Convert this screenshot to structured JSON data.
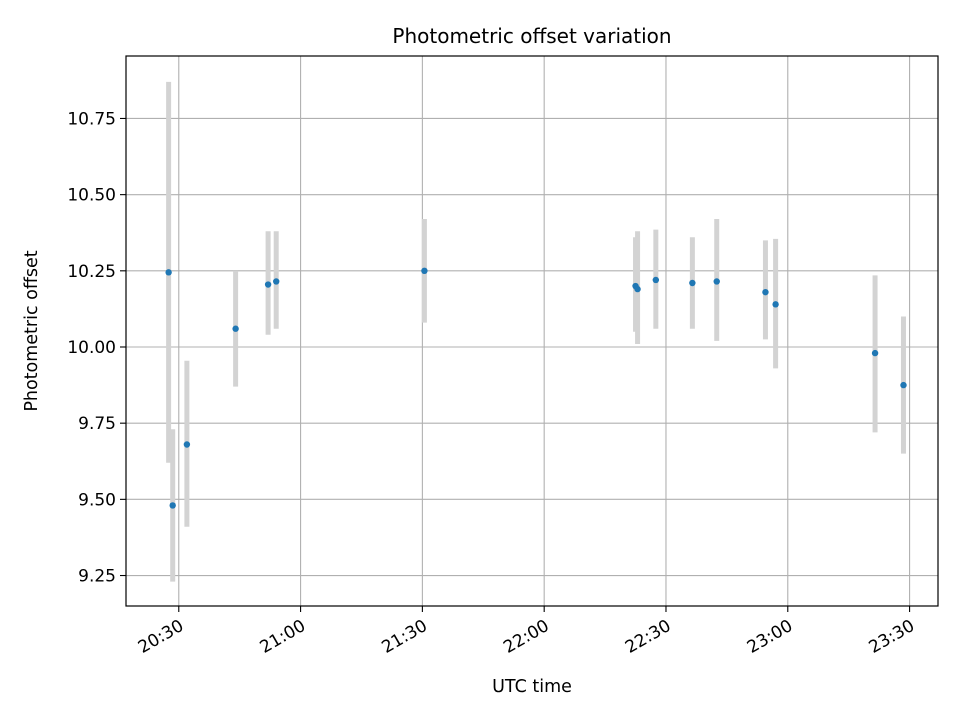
{
  "chart_data": {
    "type": "scatter",
    "title": "Photometric offset variation",
    "xlabel": "UTC time",
    "ylabel": "Photometric offset",
    "grid": true,
    "xlim": [
      "20:17",
      "23:37"
    ],
    "ylim": [
      9.15,
      10.955
    ],
    "x_ticks": [
      "20:30",
      "21:00",
      "21:30",
      "22:00",
      "22:30",
      "23:00",
      "23:30"
    ],
    "y_ticks": [
      "9.25",
      "9.50",
      "9.75",
      "10.00",
      "10.25",
      "10.50",
      "10.75"
    ],
    "colors": {
      "point": "#1f77b4",
      "errorbar": "#d3d3d3",
      "grid": "#b0b0b0"
    },
    "points": [
      {
        "x": "20:27:30",
        "y": 10.245,
        "ymin": 9.62,
        "ymax": 10.87
      },
      {
        "x": "20:28:30",
        "y": 9.48,
        "ymin": 9.23,
        "ymax": 9.73
      },
      {
        "x": "20:32:00",
        "y": 9.68,
        "ymin": 9.41,
        "ymax": 9.955
      },
      {
        "x": "20:44:00",
        "y": 10.06,
        "ymin": 9.87,
        "ymax": 10.25
      },
      {
        "x": "20:52:00",
        "y": 10.205,
        "ymin": 10.04,
        "ymax": 10.38
      },
      {
        "x": "20:54:00",
        "y": 10.215,
        "ymin": 10.06,
        "ymax": 10.38
      },
      {
        "x": "21:30:30",
        "y": 10.25,
        "ymin": 10.08,
        "ymax": 10.42
      },
      {
        "x": "22:22:30",
        "y": 10.2,
        "ymin": 10.05,
        "ymax": 10.36
      },
      {
        "x": "22:23:00",
        "y": 10.19,
        "ymin": 10.01,
        "ymax": 10.38
      },
      {
        "x": "22:27:30",
        "y": 10.22,
        "ymin": 10.06,
        "ymax": 10.385
      },
      {
        "x": "22:36:30",
        "y": 10.21,
        "ymin": 10.06,
        "ymax": 10.36
      },
      {
        "x": "22:42:30",
        "y": 10.215,
        "ymin": 10.02,
        "ymax": 10.42
      },
      {
        "x": "22:54:30",
        "y": 10.18,
        "ymin": 10.025,
        "ymax": 10.35
      },
      {
        "x": "22:57:00",
        "y": 10.14,
        "ymin": 9.93,
        "ymax": 10.355
      },
      {
        "x": "23:21:30",
        "y": 9.98,
        "ymin": 9.72,
        "ymax": 10.235
      },
      {
        "x": "23:28:30",
        "y": 9.875,
        "ymin": 9.65,
        "ymax": 10.1
      }
    ]
  }
}
